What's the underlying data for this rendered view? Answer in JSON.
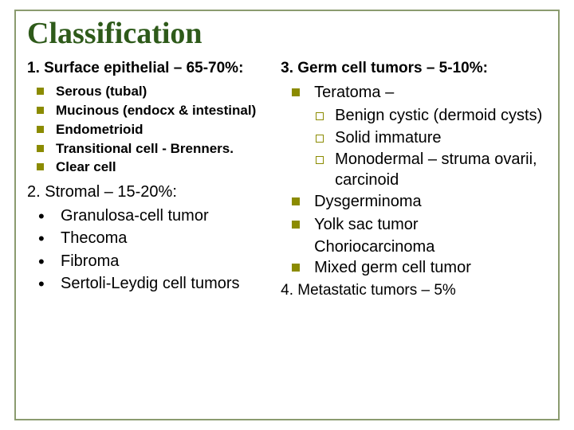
{
  "title": "Classification",
  "left": {
    "section1": {
      "heading": "1. Surface epithelial – 65-70%:",
      "items": [
        "Serous (tubal)",
        "Mucinous (endocx & intestinal)",
        "Endometrioid",
        "Transitional cell - Brenners.",
        "Clear cell"
      ]
    },
    "section2": {
      "heading": "2. Stromal – 15-20%:",
      "items": [
        "Granulosa-cell tumor",
        "Thecoma",
        "Fibroma",
        "Sertoli-Leydig cell tumors"
      ]
    }
  },
  "right": {
    "section3": {
      "heading": "3. Germ cell tumors – 5-10%:",
      "teratoma": {
        "label": "Teratoma –",
        "subs": [
          "Benign cystic (dermoid cysts)",
          "Solid immature",
          "Monodermal – struma ovarii, carcinoid"
        ]
      },
      "rest": [
        "Dysgerminoma",
        "Yolk sac tumor"
      ],
      "chorio": "Choriocarcinoma",
      "mixed": "Mixed germ cell tumor"
    },
    "section4": "4. Metastatic tumors – 5%"
  },
  "colors": {
    "title": "#2e5a1a",
    "border": "#8b9b6f",
    "bullet": "#8b8b00",
    "text": "#000000",
    "background": "#ffffff"
  }
}
